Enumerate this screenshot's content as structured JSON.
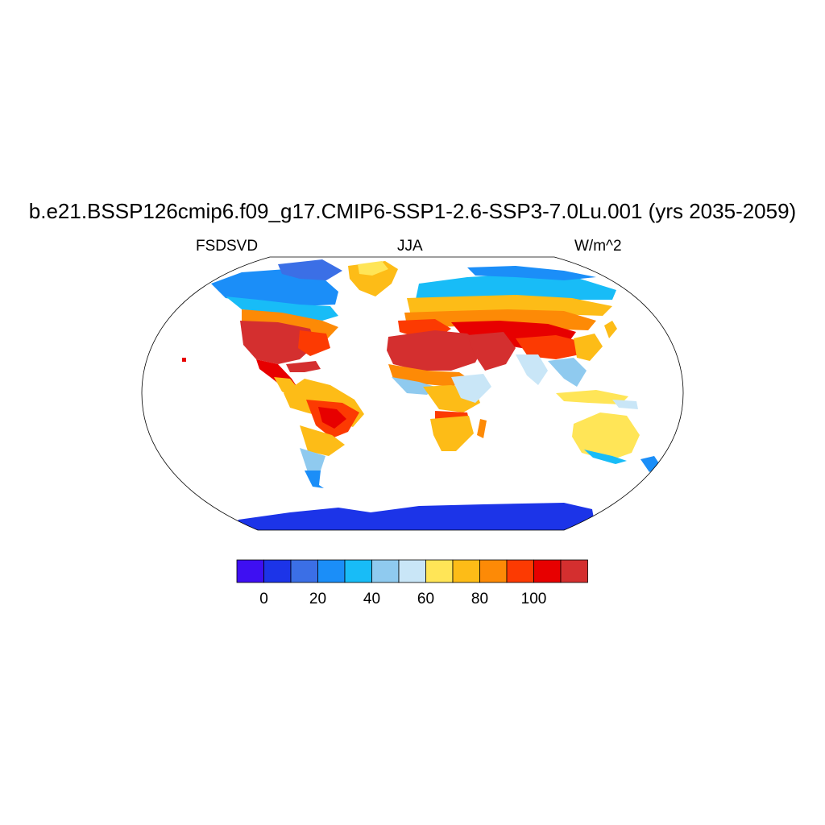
{
  "figure": {
    "title": "b.e21.BSSP126cmip6.f09_g17.CMIP6-SSP1-2.6-SSP3-7.0Lu.001 (yrs 2035-2059)",
    "left_string": "FSDSVD",
    "center_string": "JJA",
    "right_string": "W/m^2"
  },
  "map": {
    "projection": "Robinson",
    "variable": "FSDSVD",
    "season": "JJA",
    "units": "W/m^2"
  },
  "colorbar": {
    "colors": [
      "#3e0ff2",
      "#1c34e8",
      "#3b6fe6",
      "#1b8ef8",
      "#18bcf7",
      "#8fcaef",
      "#c9e6f7",
      "#ffe557",
      "#fdbc17",
      "#fd8a06",
      "#fc3a02",
      "#e70000",
      "#d42f2f"
    ],
    "tick_labels": [
      "0",
      "20",
      "40",
      "60",
      "80",
      "100"
    ]
  }
}
